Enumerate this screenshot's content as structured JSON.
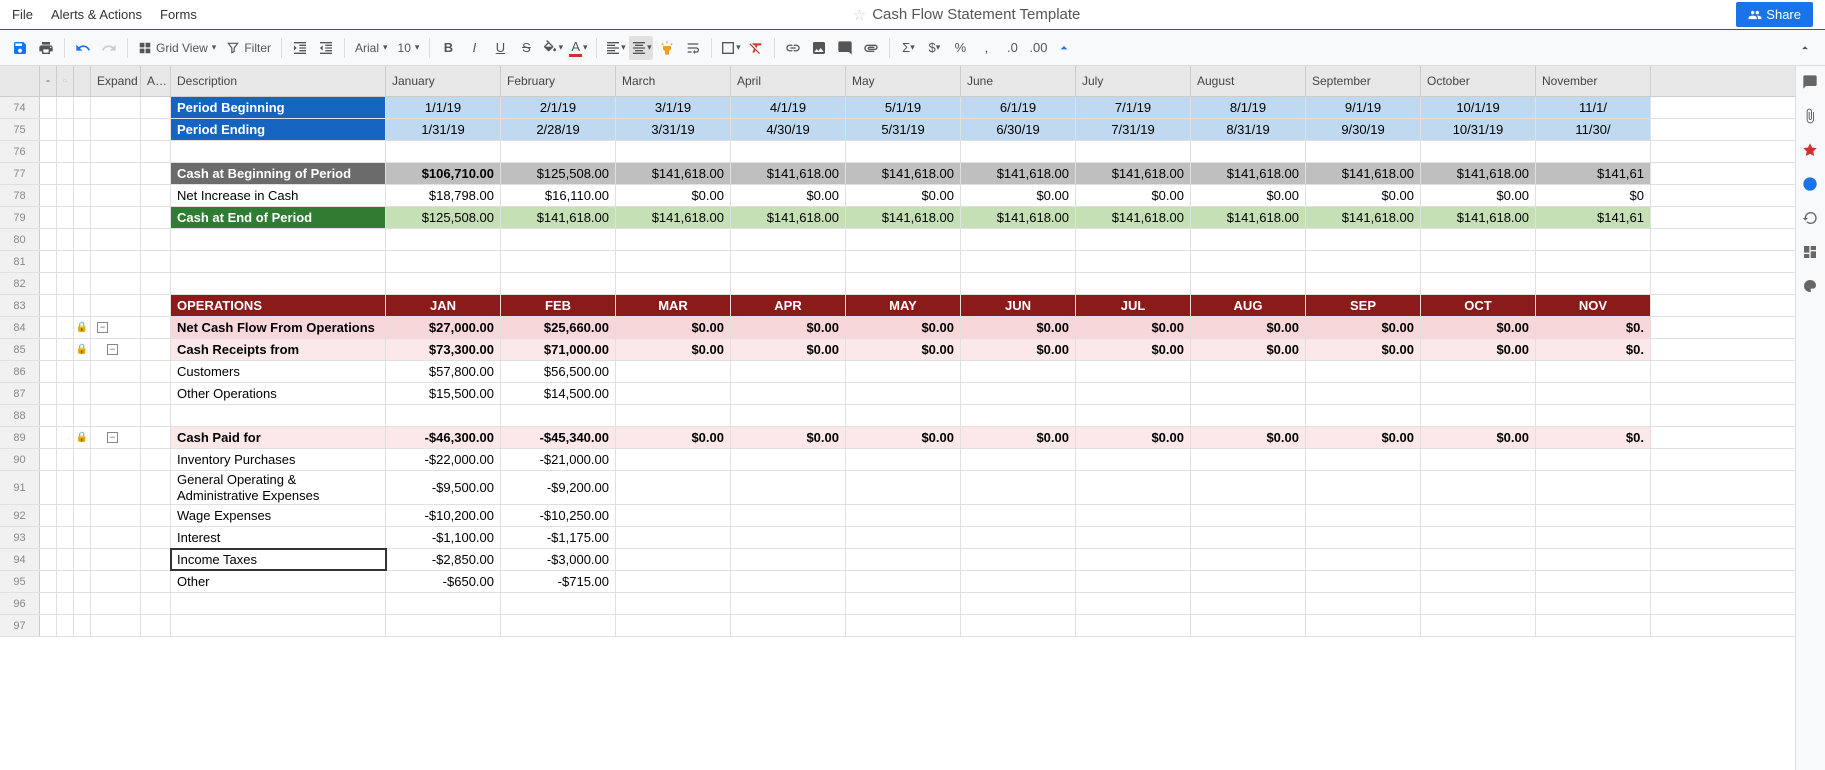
{
  "menubar": {
    "file": "File",
    "alerts": "Alerts & Actions",
    "forms": "Forms",
    "title": "Cash Flow Statement Template",
    "share": "Share"
  },
  "toolbar": {
    "grid_view": "Grid View",
    "filter": "Filter",
    "font": "Arial",
    "font_size": "10"
  },
  "columns": {
    "expand": "Expand / Colla…",
    "a": "A…",
    "description": "Description",
    "months": [
      "January",
      "February",
      "March",
      "April",
      "May",
      "June",
      "July",
      "August",
      "September",
      "October",
      "November"
    ]
  },
  "row_numbers": [
    74,
    75,
    76,
    77,
    78,
    79,
    80,
    81,
    82,
    83,
    84,
    85,
    86,
    87,
    88,
    89,
    90,
    91,
    92,
    93,
    94,
    95,
    96,
    97
  ],
  "rows": {
    "period_begin": {
      "label": "Period Beginning",
      "vals": [
        "1/1/19",
        "2/1/19",
        "3/1/19",
        "4/1/19",
        "5/1/19",
        "6/1/19",
        "7/1/19",
        "8/1/19",
        "9/1/19",
        "10/1/19",
        "11/1/"
      ]
    },
    "period_end": {
      "label": "Period Ending",
      "vals": [
        "1/31/19",
        "2/28/19",
        "3/31/19",
        "4/30/19",
        "5/31/19",
        "6/30/19",
        "7/31/19",
        "8/31/19",
        "9/30/19",
        "10/31/19",
        "11/30/"
      ]
    },
    "cash_begin": {
      "label": "Cash at Beginning of Period",
      "vals": [
        "$106,710.00",
        "$125,508.00",
        "$141,618.00",
        "$141,618.00",
        "$141,618.00",
        "$141,618.00",
        "$141,618.00",
        "$141,618.00",
        "$141,618.00",
        "$141,618.00",
        "$141,61"
      ]
    },
    "net_increase": {
      "label": "Net Increase in Cash",
      "vals": [
        "$18,798.00",
        "$16,110.00",
        "$0.00",
        "$0.00",
        "$0.00",
        "$0.00",
        "$0.00",
        "$0.00",
        "$0.00",
        "$0.00",
        "$0"
      ]
    },
    "cash_end": {
      "label": "Cash at End of Period",
      "vals": [
        "$125,508.00",
        "$141,618.00",
        "$141,618.00",
        "$141,618.00",
        "$141,618.00",
        "$141,618.00",
        "$141,618.00",
        "$141,618.00",
        "$141,618.00",
        "$141,618.00",
        "$141,61"
      ]
    },
    "operations": {
      "label": "OPERATIONS",
      "vals": [
        "JAN",
        "FEB",
        "MAR",
        "APR",
        "MAY",
        "JUN",
        "JUL",
        "AUG",
        "SEP",
        "OCT",
        "NOV"
      ]
    },
    "net_cash_ops": {
      "label": "Net Cash Flow From Operations",
      "vals": [
        "$27,000.00",
        "$25,660.00",
        "$0.00",
        "$0.00",
        "$0.00",
        "$0.00",
        "$0.00",
        "$0.00",
        "$0.00",
        "$0.00",
        "$0."
      ]
    },
    "cash_receipts": {
      "label": "Cash Receipts from",
      "vals": [
        "$73,300.00",
        "$71,000.00",
        "$0.00",
        "$0.00",
        "$0.00",
        "$0.00",
        "$0.00",
        "$0.00",
        "$0.00",
        "$0.00",
        "$0."
      ]
    },
    "customers": {
      "label": "Customers",
      "vals": [
        "$57,800.00",
        "$56,500.00",
        "",
        "",
        "",
        "",
        "",
        "",
        "",
        "",
        ""
      ]
    },
    "other_ops": {
      "label": "Other Operations",
      "vals": [
        "$15,500.00",
        "$14,500.00",
        "",
        "",
        "",
        "",
        "",
        "",
        "",
        "",
        ""
      ]
    },
    "cash_paid": {
      "label": "Cash Paid for",
      "vals": [
        "-$46,300.00",
        "-$45,340.00",
        "$0.00",
        "$0.00",
        "$0.00",
        "$0.00",
        "$0.00",
        "$0.00",
        "$0.00",
        "$0.00",
        "$0."
      ]
    },
    "inventory": {
      "label": "Inventory Purchases",
      "vals": [
        "-$22,000.00",
        "-$21,000.00",
        "",
        "",
        "",
        "",
        "",
        "",
        "",
        "",
        ""
      ]
    },
    "gen_admin": {
      "label": "General Operating & Administrative Expenses",
      "vals": [
        "-$9,500.00",
        "-$9,200.00",
        "",
        "",
        "",
        "",
        "",
        "",
        "",
        "",
        ""
      ]
    },
    "wage": {
      "label": "Wage Expenses",
      "vals": [
        "-$10,200.00",
        "-$10,250.00",
        "",
        "",
        "",
        "",
        "",
        "",
        "",
        "",
        ""
      ]
    },
    "interest": {
      "label": "Interest",
      "vals": [
        "-$1,100.00",
        "-$1,175.00",
        "",
        "",
        "",
        "",
        "",
        "",
        "",
        "",
        ""
      ]
    },
    "income_tax": {
      "label": "Income Taxes",
      "vals": [
        "-$2,850.00",
        "-$3,000.00",
        "",
        "",
        "",
        "",
        "",
        "",
        "",
        "",
        ""
      ]
    },
    "other": {
      "label": "Other",
      "vals": [
        "-$650.00",
        "-$715.00",
        "",
        "",
        "",
        "",
        "",
        "",
        "",
        "",
        ""
      ]
    }
  },
  "colors": {
    "blue_header": "#1565c0",
    "blue_light": "#bfdaf0",
    "gray_header": "#6b6b6b",
    "gray_light": "#bfbfbf",
    "green_header": "#2e7d32",
    "green_light": "#c5e0b4",
    "maroon": "#8b1a1a",
    "pink": "#f8d7da",
    "pink_light": "#fce8e9"
  }
}
